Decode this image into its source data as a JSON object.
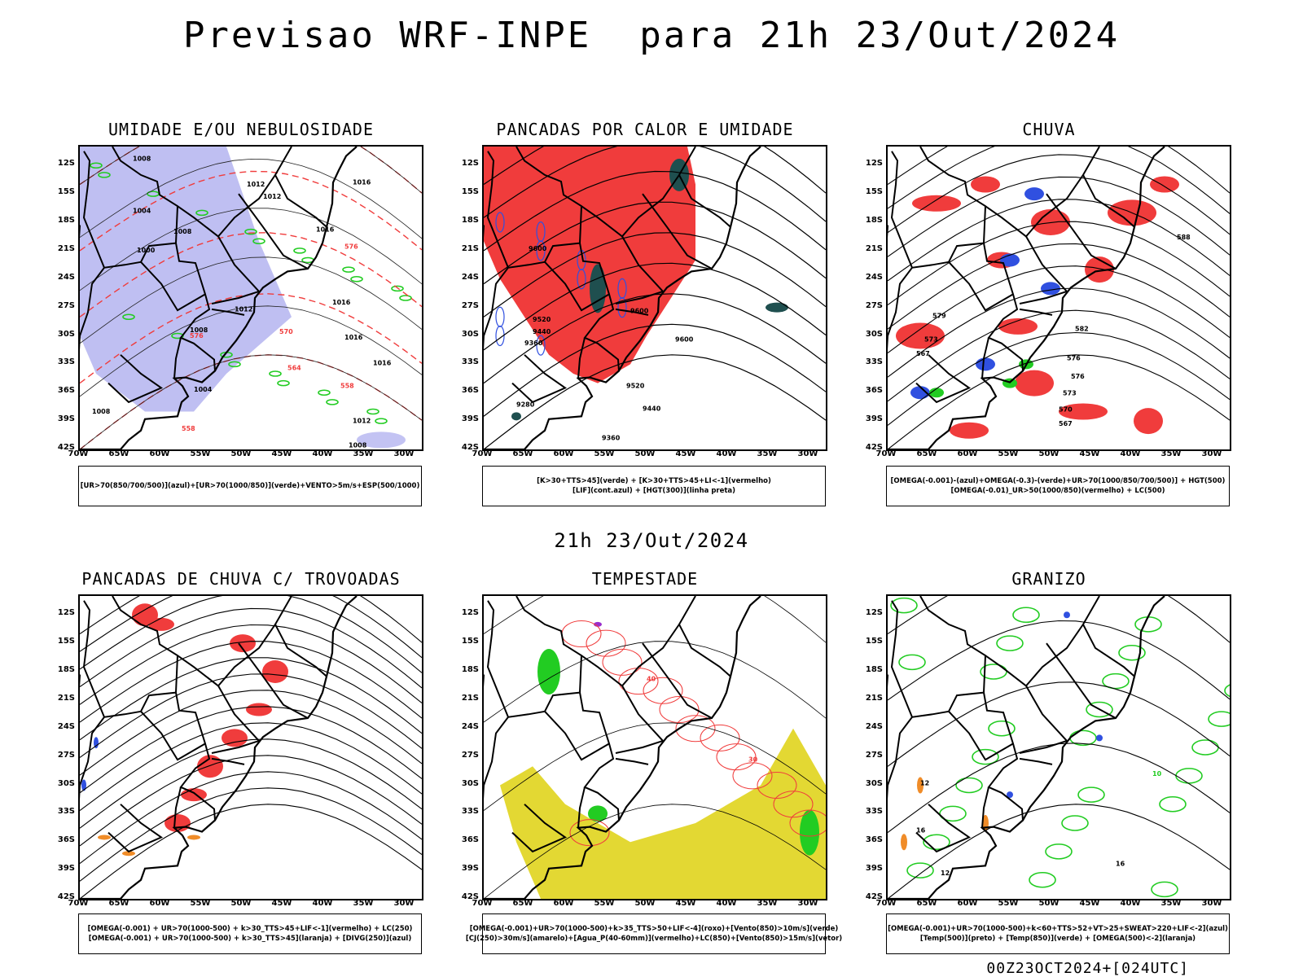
{
  "title": "Previsao WRF-INPE  para 21h 23/Out/2024",
  "subtitle": "21h 23/Out/2024",
  "footer": "00Z23OCT2024+[024UTC]",
  "colors": {
    "red": "#f03c3c",
    "green": "#22cc22",
    "blue": "#3050e0",
    "lavender": "#b4b4f0",
    "darkteal": "#1f4f4f",
    "yellow": "#e3d833",
    "orange": "#f08c28",
    "purple": "#9a2ecc",
    "black": "#000000"
  },
  "axes": {
    "lat_labels": [
      "12S",
      "15S",
      "18S",
      "21S",
      "24S",
      "27S",
      "30S",
      "33S",
      "36S",
      "39S",
      "42S"
    ],
    "lon_labels": [
      "70W",
      "65W",
      "60W",
      "55W",
      "50W",
      "45W",
      "40W",
      "35W",
      "30W"
    ],
    "lat_range": [
      -42,
      -10
    ],
    "lon_range": [
      -70,
      -28
    ]
  },
  "chart_data": [
    {
      "type": "heatmap",
      "title": "UMIDADE E/OU NEBULOSIDADE",
      "legend": [
        "[UR>70(850/700/500)](azul)+[UR>70(1000/850)](verde)+VENTO>5m/s+ESP(500/1000)"
      ],
      "contour_labels": [
        {
          "text": "1008",
          "lon": -63.5,
          "lat": -11.5,
          "color": "black"
        },
        {
          "text": "1012",
          "lon": -49.5,
          "lat": -14.2,
          "color": "black"
        },
        {
          "text": "1012",
          "lon": -47.5,
          "lat": -15.5,
          "color": "black"
        },
        {
          "text": "1016",
          "lon": -36.5,
          "lat": -14.0,
          "color": "black"
        },
        {
          "text": "1004",
          "lon": -63.5,
          "lat": -17.0,
          "color": "black"
        },
        {
          "text": "1008",
          "lon": -58.5,
          "lat": -19.2,
          "color": "black"
        },
        {
          "text": "1016",
          "lon": -41.0,
          "lat": -19.0,
          "color": "black"
        },
        {
          "text": "1000",
          "lon": -63.0,
          "lat": -21.2,
          "color": "black"
        },
        {
          "text": "576",
          "lon": -37.5,
          "lat": -20.8,
          "color": "red"
        },
        {
          "text": "1012",
          "lon": -51.0,
          "lat": -27.4,
          "color": "black"
        },
        {
          "text": "1016",
          "lon": -39.0,
          "lat": -26.7,
          "color": "black"
        },
        {
          "text": "1008",
          "lon": -56.5,
          "lat": -29.6,
          "color": "black"
        },
        {
          "text": "576",
          "lon": -56.5,
          "lat": -30.2,
          "color": "red"
        },
        {
          "text": "570",
          "lon": -45.5,
          "lat": -29.8,
          "color": "red"
        },
        {
          "text": "1016",
          "lon": -37.5,
          "lat": -30.4,
          "color": "black"
        },
        {
          "text": "1016",
          "lon": -34.0,
          "lat": -33.1,
          "color": "black"
        },
        {
          "text": "564",
          "lon": -44.5,
          "lat": -33.6,
          "color": "red"
        },
        {
          "text": "558",
          "lon": -38.0,
          "lat": -35.5,
          "color": "red"
        },
        {
          "text": "1004",
          "lon": -56.0,
          "lat": -35.9,
          "color": "black"
        },
        {
          "text": "1012",
          "lon": -36.5,
          "lat": -39.2,
          "color": "black"
        },
        {
          "text": "1008",
          "lon": -37.0,
          "lat": -41.8,
          "color": "black"
        },
        {
          "text": "558",
          "lon": -57.5,
          "lat": -40.0,
          "color": "red"
        },
        {
          "text": "1008",
          "lon": -68.5,
          "lat": -38.2,
          "color": "black"
        }
      ]
    },
    {
      "type": "heatmap",
      "title": "PANCADAS POR CALOR E UMIDADE",
      "legend": [
        "[K>30+TTS>45](verde) + [K>30+TTS>45+LI<-1](vermelho)",
        "[LIF](cont.azul) + [HGT(300)](linha preta)"
      ],
      "contour_labels": [
        {
          "text": "9600",
          "lon": -64.5,
          "lat": -21.0,
          "color": "black"
        },
        {
          "text": "9520",
          "lon": -64.0,
          "lat": -28.5,
          "color": "black"
        },
        {
          "text": "9440",
          "lon": -64.0,
          "lat": -29.8,
          "color": "black"
        },
        {
          "text": "9360",
          "lon": -65.0,
          "lat": -31.0,
          "color": "black"
        },
        {
          "text": "9600",
          "lon": -52.0,
          "lat": -27.6,
          "color": "black"
        },
        {
          "text": "9600",
          "lon": -46.5,
          "lat": -30.6,
          "color": "black"
        },
        {
          "text": "9520",
          "lon": -52.5,
          "lat": -35.5,
          "color": "black"
        },
        {
          "text": "9440",
          "lon": -50.5,
          "lat": -37.9,
          "color": "black"
        },
        {
          "text": "9280",
          "lon": -66.0,
          "lat": -37.5,
          "color": "black"
        },
        {
          "text": "9360",
          "lon": -55.5,
          "lat": -41.0,
          "color": "black"
        }
      ]
    },
    {
      "type": "heatmap",
      "title": "CHUVA",
      "legend": [
        "[OMEGA(-0.001)-(azul)+OMEGA(-0.3)-(verde)+UR>70(1000/850/700/500)] + HGT(500)",
        "[OMEGA(-0.01)_UR>50(1000/850)(vermelho) + LC(500)"
      ],
      "contour_labels": [
        {
          "text": "588",
          "lon": -34.5,
          "lat": -19.8,
          "color": "black"
        },
        {
          "text": "582",
          "lon": -47.0,
          "lat": -29.5,
          "color": "black"
        },
        {
          "text": "579",
          "lon": -64.5,
          "lat": -28.1,
          "color": "black"
        },
        {
          "text": "576",
          "lon": -48.0,
          "lat": -32.6,
          "color": "black"
        },
        {
          "text": "576",
          "lon": -47.5,
          "lat": -34.5,
          "color": "black"
        },
        {
          "text": "573",
          "lon": -48.5,
          "lat": -36.3,
          "color": "black"
        },
        {
          "text": "570",
          "lon": -49.0,
          "lat": -38.0,
          "color": "black"
        },
        {
          "text": "567",
          "lon": -49.0,
          "lat": -39.5,
          "color": "black"
        },
        {
          "text": "567",
          "lon": -66.5,
          "lat": -32.1,
          "color": "black"
        },
        {
          "text": "573",
          "lon": -65.5,
          "lat": -30.6,
          "color": "black"
        }
      ]
    },
    {
      "type": "heatmap",
      "title": "PANCADAS DE CHUVA C/ TROVOADAS",
      "legend": [
        "[OMEGA(-0.001) + UR>70(1000-500) + k>30_TTS>45+LIF<-1](vermelho) + LC(250)",
        "[OMEGA(-0.001) + UR>70(1000-500) + k>30_TTS>45](laranja) + [DIVG(250)](azul)"
      ],
      "contour_labels": []
    },
    {
      "type": "heatmap",
      "title": "TEMPESTADE",
      "legend": [
        "[OMEGA(-0.001)+UR>70(1000-500)+k>35_TTS>50+LIF<-4](roxo)+[Vento(850)>10m/s](verde)",
        "[CJ(250)>30m/s](amarelo)+[Agua_P(40-60mm)](vermelho)+LC(850)+[Vento(850)>15m/s](vetor)"
      ],
      "contour_labels": [
        {
          "text": "40",
          "lon": -50.0,
          "lat": -19.0,
          "color": "red"
        },
        {
          "text": "30",
          "lon": -37.5,
          "lat": -27.5,
          "color": "red"
        }
      ]
    },
    {
      "type": "heatmap",
      "title": "GRANIZO",
      "legend": [
        "[OMEGA(-0.001)+UR>70(1000-500)+k<60+TTS>52+VT>25+SWEAT>220+LIF<-2](azul)",
        "[Temp(500)](preto) + [Temp(850)](verde) + [OMEGA(500)<-2](laranja)"
      ],
      "contour_labels": [
        {
          "text": "12",
          "lon": -66.0,
          "lat": -30.0,
          "color": "black"
        },
        {
          "text": "16",
          "lon": -66.5,
          "lat": -35.0,
          "color": "black"
        },
        {
          "text": "12",
          "lon": -63.5,
          "lat": -39.5,
          "color": "black"
        },
        {
          "text": "16",
          "lon": -42.0,
          "lat": -38.5,
          "color": "black"
        },
        {
          "text": "10",
          "lon": -37.5,
          "lat": -29.0,
          "color": "green"
        }
      ]
    }
  ]
}
